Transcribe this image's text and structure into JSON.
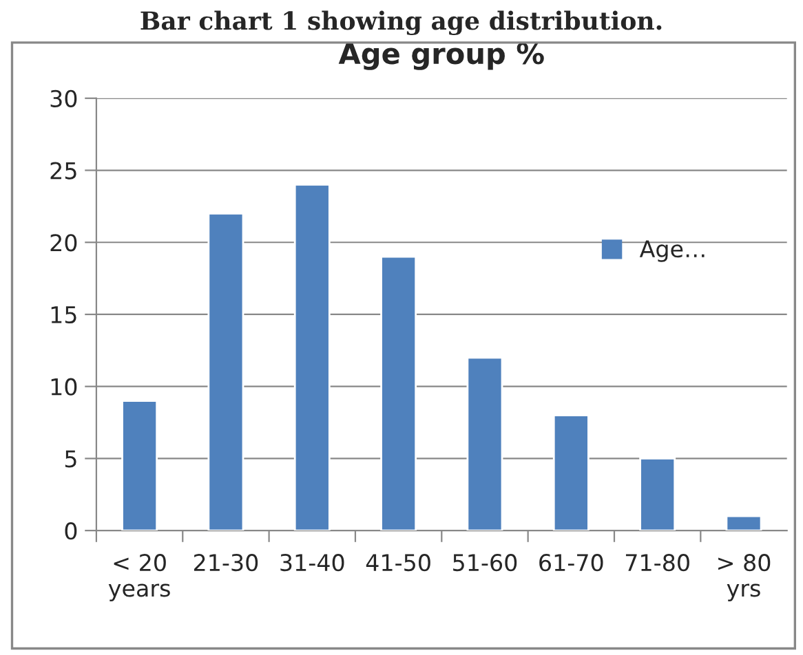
{
  "chart_data": {
    "type": "bar",
    "title": "Age group %",
    "annotations": [
      "Bar chart 1 showing age distribution."
    ],
    "categories": [
      "< 20\nyears",
      "21-30",
      "31-40",
      "41-50",
      "51-60",
      "61-70",
      "71-80",
      "> 80\nyrs"
    ],
    "series": [
      {
        "name": "Age…",
        "color": "#4f81bd",
        "values": [
          9,
          22,
          24,
          19,
          12,
          8,
          5,
          1
        ]
      }
    ],
    "ylim": [
      0,
      30
    ],
    "yticks": [
      0,
      5,
      10,
      15,
      20,
      25,
      30
    ],
    "grid": "y",
    "legend": "right"
  }
}
